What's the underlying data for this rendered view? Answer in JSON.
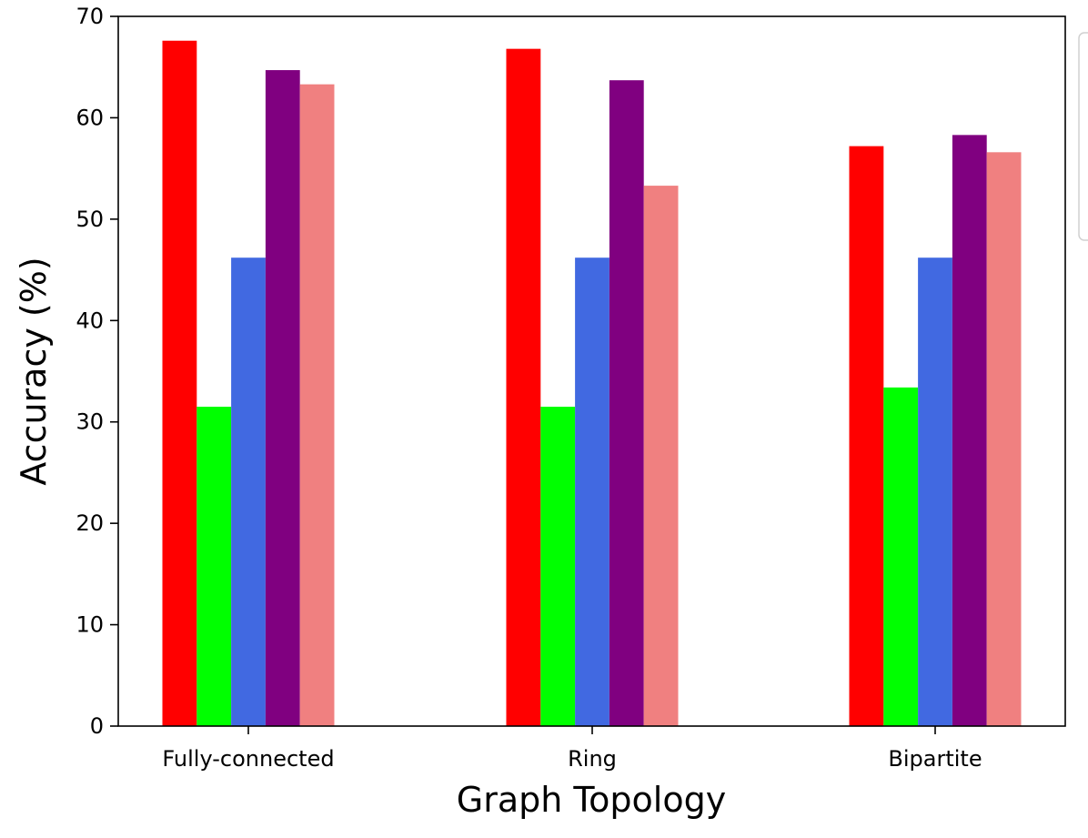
{
  "chart_data": {
    "type": "bar",
    "title": "",
    "xlabel": "Graph Topology",
    "ylabel": "Accuracy (%)",
    "categories": [
      "Fully-connected",
      "Ring",
      "Bipartite"
    ],
    "ylim": [
      0,
      70
    ],
    "yticks": [
      0,
      10,
      20,
      30,
      40,
      50,
      60,
      70
    ],
    "grid": false,
    "legend_position": "right (outside, clipped)",
    "series": [
      {
        "color": "#ff0000",
        "values": [
          67.6,
          66.8,
          57.2
        ]
      },
      {
        "color": "#00ff00",
        "values": [
          31.5,
          31.5,
          33.4
        ]
      },
      {
        "color": "#4169e1",
        "values": [
          46.2,
          46.2,
          46.2
        ]
      },
      {
        "color": "#800080",
        "values": [
          64.7,
          63.7,
          58.3
        ]
      },
      {
        "color": "#f08080",
        "values": [
          63.3,
          53.3,
          56.6
        ]
      }
    ]
  }
}
